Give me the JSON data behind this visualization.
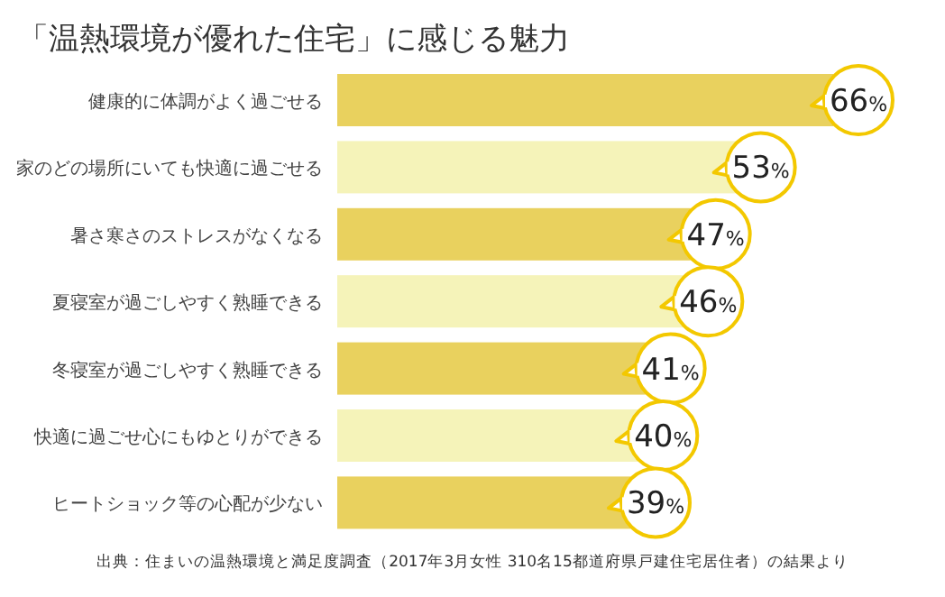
{
  "chart_data": {
    "type": "bar",
    "orientation": "horizontal",
    "title": "「温熱環境が優れた住宅」に感じる魅力",
    "categories": [
      "健康的に体調がよく過ごせる",
      "家のどの場所にいても快適に過ごせる",
      "暑さ寒さのストレスがなくなる",
      "夏寝室が過ごしやすく熟睡できる",
      "冬寝室が過ごしやすく熟睡できる",
      "快適に過ごせ心にもゆとりができる",
      "ヒートショック等の心配が少ない"
    ],
    "values": [
      66,
      53,
      47,
      46,
      41,
      40,
      39
    ],
    "value_labels": [
      "66%",
      "53%",
      "47%",
      "46%",
      "41%",
      "40%",
      "39%"
    ],
    "colors": [
      "#e9d15e",
      "#f5f3b9",
      "#e9d15e",
      "#f5f3b9",
      "#e9d15e",
      "#f5f3b9",
      "#e9d15e"
    ],
    "tick_labels": "y",
    "annotations": [
      "出典：住まいの温熱環境と満足度調査（2017年3月女性 310名15都道府県戸建住宅居住者）の結果より"
    ]
  }
}
